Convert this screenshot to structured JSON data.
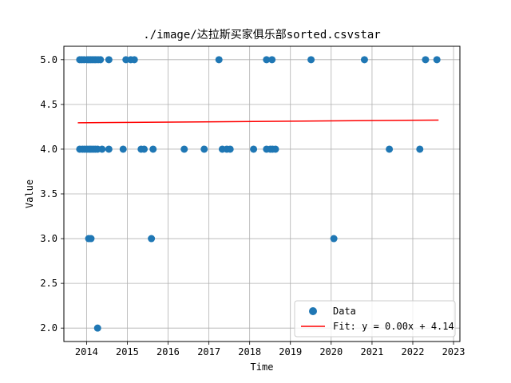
{
  "chart_data": {
    "type": "scatter",
    "title": "./image/达拉斯买家俱乐部sorted.csvstar",
    "xlabel": "Time",
    "ylabel": "Value",
    "xlim": [
      "2013-06-12",
      "2023-02-27"
    ],
    "ylim": [
      1.85,
      5.15
    ],
    "grid": true,
    "legend_placement": "lower-right",
    "x_ticks": [
      "2014",
      "2015",
      "2016",
      "2017",
      "2018",
      "2019",
      "2020",
      "2021",
      "2022",
      "2023"
    ],
    "y_ticks": [
      "2.0",
      "2.5",
      "3.0",
      "3.5",
      "4.0",
      "4.5",
      "5.0"
    ],
    "series": [
      {
        "name": "Data",
        "color": "#1f77b4",
        "points": [
          {
            "x": "2013-11-01",
            "y": 5.0
          },
          {
            "x": "2013-11-20",
            "y": 5.0
          },
          {
            "x": "2013-12-10",
            "y": 5.0
          },
          {
            "x": "2014-01-05",
            "y": 5.0
          },
          {
            "x": "2014-01-20",
            "y": 5.0
          },
          {
            "x": "2014-02-05",
            "y": 5.0
          },
          {
            "x": "2014-02-20",
            "y": 5.0
          },
          {
            "x": "2014-03-10",
            "y": 5.0
          },
          {
            "x": "2014-03-25",
            "y": 5.0
          },
          {
            "x": "2014-04-15",
            "y": 5.0
          },
          {
            "x": "2014-05-05",
            "y": 5.0
          },
          {
            "x": "2014-07-20",
            "y": 5.0
          },
          {
            "x": "2014-12-20",
            "y": 5.0
          },
          {
            "x": "2015-02-01",
            "y": 5.0
          },
          {
            "x": "2015-03-05",
            "y": 5.0
          },
          {
            "x": "2017-04-01",
            "y": 5.0
          },
          {
            "x": "2018-06-01",
            "y": 5.0
          },
          {
            "x": "2018-07-20",
            "y": 5.0
          },
          {
            "x": "2019-07-05",
            "y": 5.0
          },
          {
            "x": "2020-10-25",
            "y": 5.0
          },
          {
            "x": "2022-04-25",
            "y": 5.0
          },
          {
            "x": "2022-08-05",
            "y": 5.0
          },
          {
            "x": "2013-11-01",
            "y": 4.0
          },
          {
            "x": "2013-11-25",
            "y": 4.0
          },
          {
            "x": "2013-12-15",
            "y": 4.0
          },
          {
            "x": "2014-01-05",
            "y": 4.0
          },
          {
            "x": "2014-01-25",
            "y": 4.0
          },
          {
            "x": "2014-02-10",
            "y": 4.0
          },
          {
            "x": "2014-03-01",
            "y": 4.0
          },
          {
            "x": "2014-03-20",
            "y": 4.0
          },
          {
            "x": "2014-04-10",
            "y": 4.0
          },
          {
            "x": "2014-05-20",
            "y": 4.0
          },
          {
            "x": "2014-07-20",
            "y": 4.0
          },
          {
            "x": "2014-11-25",
            "y": 4.0
          },
          {
            "x": "2015-05-05",
            "y": 4.0
          },
          {
            "x": "2015-06-01",
            "y": 4.0
          },
          {
            "x": "2015-08-20",
            "y": 4.0
          },
          {
            "x": "2016-05-25",
            "y": 4.0
          },
          {
            "x": "2016-11-20",
            "y": 4.0
          },
          {
            "x": "2017-05-01",
            "y": 4.0
          },
          {
            "x": "2017-06-10",
            "y": 4.0
          },
          {
            "x": "2017-07-10",
            "y": 4.0
          },
          {
            "x": "2018-02-05",
            "y": 4.0
          },
          {
            "x": "2018-06-01",
            "y": 4.0
          },
          {
            "x": "2018-07-05",
            "y": 4.0
          },
          {
            "x": "2018-07-25",
            "y": 4.0
          },
          {
            "x": "2018-08-20",
            "y": 4.0
          },
          {
            "x": "2021-06-05",
            "y": 4.0
          },
          {
            "x": "2022-03-05",
            "y": 4.0
          },
          {
            "x": "2014-01-20",
            "y": 3.0
          },
          {
            "x": "2014-02-10",
            "y": 3.0
          },
          {
            "x": "2015-08-05",
            "y": 3.0
          },
          {
            "x": "2020-01-25",
            "y": 3.0
          },
          {
            "x": "2014-04-10",
            "y": 2.0
          }
        ]
      }
    ],
    "fit": {
      "name": "Fit: y = 0.00x + 4.14",
      "color": "#ff0000",
      "x": [
        "2013-10-15",
        "2022-08-20"
      ],
      "y": [
        4.295,
        4.325
      ]
    }
  }
}
